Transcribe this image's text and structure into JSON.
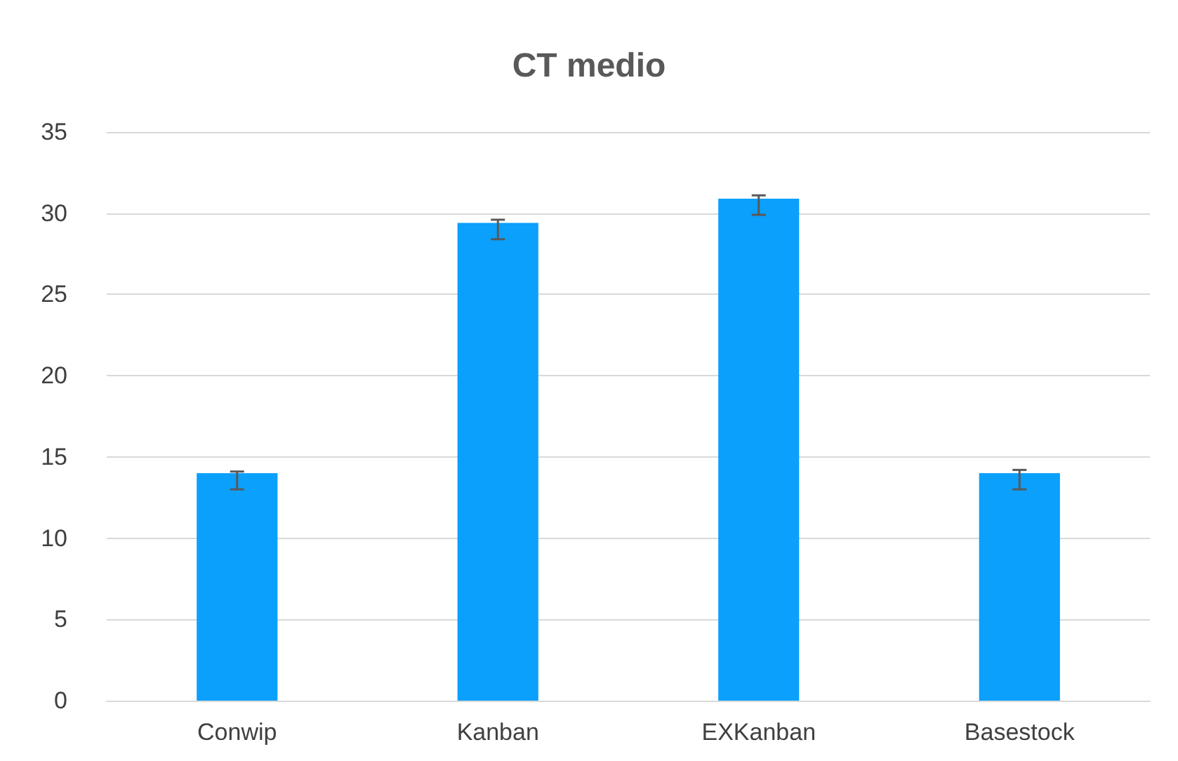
{
  "chart_data": {
    "type": "bar",
    "title": "CT medio",
    "categories": [
      "Conwip",
      "Kanban",
      "EXKanban",
      "Basestock"
    ],
    "values": [
      14.0,
      29.4,
      30.9,
      14.0
    ],
    "errors": [
      [
        13.0,
        14.1
      ],
      [
        28.4,
        29.6
      ],
      [
        29.9,
        31.1
      ],
      [
        13.0,
        14.2
      ]
    ],
    "color": "#0aa0fc",
    "ylim": [
      0,
      35
    ],
    "yticks": [
      0,
      5,
      10,
      15,
      20,
      25,
      30,
      35
    ],
    "grid": "y"
  }
}
